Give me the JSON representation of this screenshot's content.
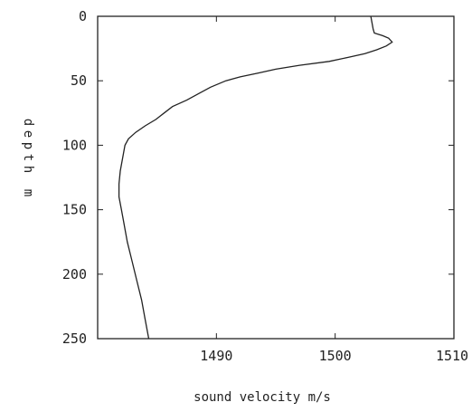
{
  "chart_data": {
    "type": "line",
    "xlabel": "sound velocity m/s",
    "ylabel": "depth m",
    "xlim": [
      1480,
      1510
    ],
    "ylim": [
      250,
      0
    ],
    "y_inverted": true,
    "grid": false,
    "x_ticks": [
      "1490",
      "1500",
      "1510"
    ],
    "y_ticks": [
      "0",
      "50",
      "100",
      "150",
      "200",
      "250"
    ],
    "series": [
      {
        "points": [
          [
            1503.0,
            0
          ],
          [
            1503.1,
            5
          ],
          [
            1503.2,
            10
          ],
          [
            1503.3,
            13
          ],
          [
            1504.0,
            15
          ],
          [
            1504.5,
            17
          ],
          [
            1504.8,
            20
          ],
          [
            1504.3,
            23
          ],
          [
            1503.5,
            26
          ],
          [
            1502.5,
            29
          ],
          [
            1501.0,
            32
          ],
          [
            1499.5,
            35
          ],
          [
            1497.0,
            38
          ],
          [
            1495.0,
            41
          ],
          [
            1493.5,
            44
          ],
          [
            1492.0,
            47
          ],
          [
            1490.8,
            50
          ],
          [
            1489.5,
            55
          ],
          [
            1488.5,
            60
          ],
          [
            1487.5,
            65
          ],
          [
            1486.3,
            70
          ],
          [
            1485.6,
            75
          ],
          [
            1484.9,
            80
          ],
          [
            1484.0,
            85
          ],
          [
            1483.2,
            90
          ],
          [
            1482.6,
            95
          ],
          [
            1482.3,
            100
          ],
          [
            1482.1,
            110
          ],
          [
            1481.9,
            120
          ],
          [
            1481.8,
            130
          ],
          [
            1481.8,
            140
          ],
          [
            1482.0,
            150
          ],
          [
            1482.2,
            160
          ],
          [
            1482.5,
            175
          ],
          [
            1482.9,
            190
          ],
          [
            1483.3,
            205
          ],
          [
            1483.7,
            220
          ],
          [
            1484.0,
            235
          ],
          [
            1484.3,
            250
          ]
        ]
      }
    ]
  }
}
